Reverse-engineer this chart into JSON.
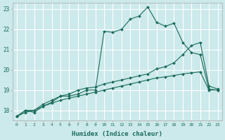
{
  "title": "",
  "xlabel": "Humidex (Indice chaleur)",
  "ylabel": "",
  "bg_color": "#cce9eb",
  "grid_color": "#ffffff",
  "line_color": "#1a6b5a",
  "x_range": [
    -0.5,
    23.5
  ],
  "y_range": [
    17.5,
    23.3
  ],
  "yticks": [
    18,
    19,
    20,
    21,
    22,
    23
  ],
  "xticks": [
    0,
    1,
    2,
    3,
    4,
    5,
    6,
    7,
    8,
    9,
    10,
    11,
    12,
    13,
    14,
    15,
    16,
    17,
    18,
    19,
    20,
    21,
    22,
    23
  ],
  "line1_x": [
    0,
    1,
    2,
    3,
    4,
    5,
    6,
    7,
    8,
    9,
    10,
    11,
    12,
    13,
    14,
    15,
    16,
    17,
    18,
    19,
    20,
    21,
    22,
    23
  ],
  "line1_y": [
    17.7,
    18.0,
    17.9,
    18.2,
    18.4,
    18.7,
    18.7,
    18.8,
    19.0,
    19.0,
    21.9,
    21.85,
    22.0,
    22.5,
    22.65,
    23.1,
    22.35,
    22.15,
    22.3,
    21.35,
    20.85,
    20.75,
    19.05,
    19.0
  ],
  "line2_x": [
    0,
    1,
    2,
    3,
    4,
    5,
    6,
    7,
    8,
    9,
    10,
    11,
    12,
    13,
    14,
    15,
    16,
    17,
    18,
    19,
    20,
    21,
    22,
    23
  ],
  "line2_y": [
    17.7,
    18.0,
    18.0,
    18.3,
    18.5,
    18.7,
    18.8,
    19.0,
    19.1,
    19.15,
    19.3,
    19.4,
    19.5,
    19.6,
    19.7,
    19.8,
    20.05,
    20.15,
    20.35,
    20.75,
    21.2,
    21.35,
    19.2,
    19.05
  ],
  "line3_x": [
    0,
    1,
    2,
    3,
    4,
    5,
    6,
    7,
    8,
    9,
    10,
    11,
    12,
    13,
    14,
    15,
    16,
    17,
    18,
    19,
    20,
    21,
    22,
    23
  ],
  "line3_y": [
    17.7,
    17.9,
    18.0,
    18.2,
    18.35,
    18.5,
    18.6,
    18.7,
    18.8,
    18.9,
    19.0,
    19.1,
    19.2,
    19.3,
    19.4,
    19.5,
    19.6,
    19.65,
    19.72,
    19.8,
    19.85,
    19.9,
    19.0,
    19.0
  ]
}
